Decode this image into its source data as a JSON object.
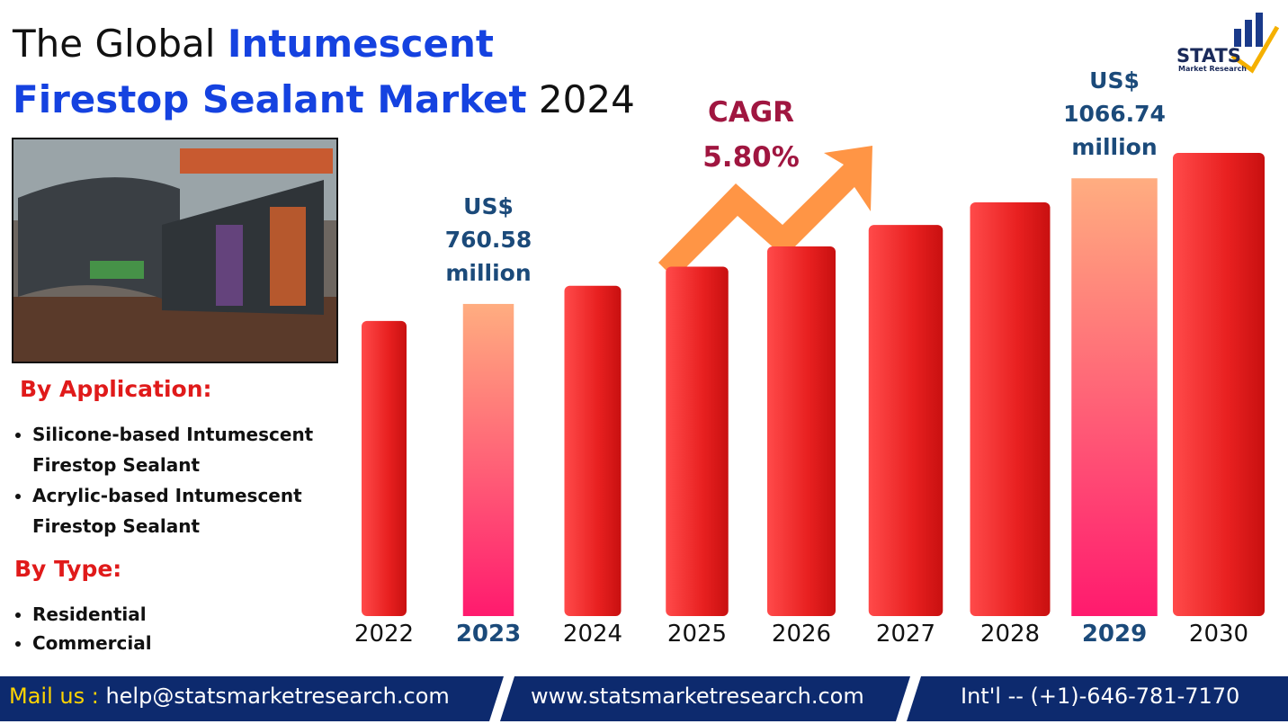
{
  "title_parts": [
    "The Global",
    "Intumescent",
    "Firestop Sealant Market",
    "2024"
  ],
  "cagr": {
    "label": "CAGR",
    "value": "5.80%"
  },
  "logo": {
    "name": "STATS",
    "subtitle": "Market Research"
  },
  "segments": [
    {
      "heading": "By Application:",
      "items": [
        "Silicone-based Intumescent Firestop Sealant",
        "Acrylic-based Intumescent Firestop Sealant"
      ]
    },
    {
      "heading": "By Type:",
      "items": [
        "Residential",
        "Commercial"
      ]
    }
  ],
  "footer": {
    "mail_label": "Mail us :",
    "email": "help@statsmarketresearch.com",
    "website": "www.statsmarketresearch.com",
    "phone": "Int'l -- (+1)-646-781-7170"
  },
  "chart_data": {
    "type": "bar",
    "categories": [
      "2022",
      "2023",
      "2024",
      "2025",
      "2026",
      "2027",
      "2028",
      "2029",
      "2030"
    ],
    "values": [
      719,
      760.58,
      804.7,
      851.3,
      900.7,
      952.9,
      1008.2,
      1066.74,
      1128.6
    ],
    "value_labels": [
      null,
      "US$ 760.58 million",
      null,
      null,
      null,
      null,
      null,
      "US$ 1066.74 million",
      null
    ],
    "color": "#e82020",
    "highlight_color": "#ff2a7a"
  }
}
